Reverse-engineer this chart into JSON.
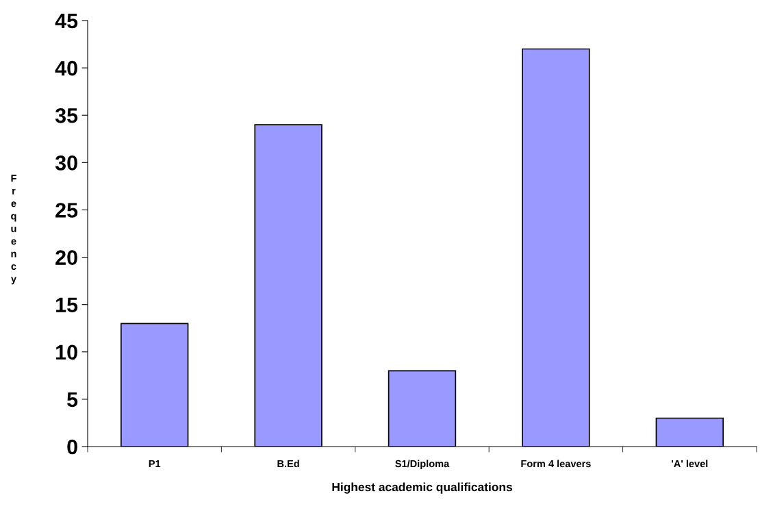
{
  "chart_data": {
    "type": "bar",
    "xlabel": "Highest academic qualifications",
    "ylabel": "Frequency",
    "categories": [
      "P1",
      "B.Ed",
      "S1/Diploma",
      "Form 4 leavers",
      "'A' level"
    ],
    "values": [
      13,
      34,
      8,
      42,
      3
    ],
    "color": "#9999ff",
    "ylim": [
      0,
      45
    ],
    "yticks": [
      0,
      5,
      10,
      15,
      20,
      25,
      30,
      35,
      40,
      45
    ],
    "grid": false,
    "legend": false
  }
}
